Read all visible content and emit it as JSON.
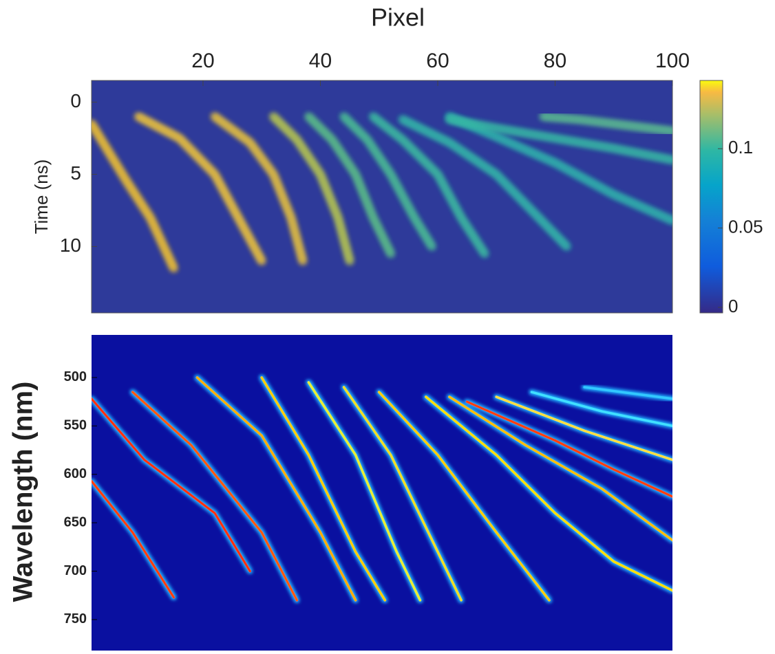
{
  "chart_data": [
    {
      "type": "heatmap",
      "title": "Pixel",
      "ylabel": "Time (ns)",
      "xlim": [
        1,
        100
      ],
      "xticks": [
        20,
        40,
        60,
        80,
        100
      ],
      "ylim": [
        -1.5,
        14.6
      ],
      "yticks": [
        0,
        5,
        10
      ],
      "colorbar": {
        "lim": [
          -0.0035,
          0.143
        ],
        "ticks": [
          0,
          0.05,
          0.1
        ]
      },
      "series": [
        {
          "color": "#f2c232",
          "x": [
            1,
            7,
            11,
            15
          ],
          "values": [
            1.5,
            5.5,
            8,
            11.5
          ]
        },
        {
          "color": "#f0c53a",
          "x": [
            9,
            16,
            22,
            26,
            30
          ],
          "values": [
            1,
            2.5,
            5,
            8,
            11
          ]
        },
        {
          "color": "#e8c23c",
          "x": [
            22,
            28,
            32,
            35,
            37
          ],
          "values": [
            1,
            2.8,
            5,
            8,
            11
          ]
        },
        {
          "color": "#b8c850",
          "x": [
            32,
            36,
            40,
            43,
            45
          ],
          "values": [
            1,
            2.6,
            5,
            8,
            11
          ]
        },
        {
          "color": "#5cc088",
          "x": [
            38,
            42,
            46,
            49,
            52
          ],
          "values": [
            1,
            2.6,
            5,
            8,
            10.5
          ]
        },
        {
          "color": "#4cbe94",
          "x": [
            44,
            48,
            52,
            56,
            59
          ],
          "values": [
            1,
            2.6,
            5,
            8,
            10
          ]
        },
        {
          "color": "#3cbca0",
          "x": [
            49,
            54,
            60,
            64,
            68
          ],
          "values": [
            1,
            2.6,
            5,
            8,
            10.5
          ]
        },
        {
          "color": "#34b8a8",
          "x": [
            54,
            62,
            70,
            76,
            82
          ],
          "values": [
            1.2,
            2.8,
            5,
            7.5,
            10
          ]
        },
        {
          "color": "#30b4ac",
          "x": [
            62,
            70,
            80,
            90,
            100
          ],
          "values": [
            1,
            2.4,
            4.2,
            6.4,
            8.2
          ]
        },
        {
          "color": "#38b8a4",
          "x": [
            62,
            70,
            80,
            90,
            100
          ],
          "values": [
            1.2,
            1.8,
            2.5,
            3.2,
            4
          ]
        },
        {
          "color": "#5cbc90",
          "x": [
            78,
            84,
            90,
            100
          ],
          "values": [
            1,
            1.2,
            1.5,
            2
          ]
        }
      ]
    },
    {
      "type": "heatmap",
      "ylabel": "Wavelength (nm)",
      "xlim": [
        1,
        100
      ],
      "ylim": [
        456,
        782
      ],
      "yticks": [
        500,
        550,
        600,
        650,
        700,
        750
      ],
      "series": [
        {
          "color": "#ff3010",
          "x": [
            1,
            10,
            22,
            28
          ],
          "values": [
            522,
            585,
            640,
            700
          ]
        },
        {
          "color": "#ff4010",
          "x": [
            1,
            8,
            15
          ],
          "values": [
            607,
            660,
            727
          ]
        },
        {
          "color": "#ff5a10",
          "x": [
            8,
            18,
            30,
            36
          ],
          "values": [
            515,
            570,
            660,
            730
          ]
        },
        {
          "color": "#ffb000",
          "x": [
            19,
            30,
            40,
            46
          ],
          "values": [
            500,
            560,
            660,
            730
          ]
        },
        {
          "color": "#ffd000",
          "x": [
            30,
            38,
            46,
            51
          ],
          "values": [
            500,
            580,
            680,
            730
          ]
        },
        {
          "color": "#e8f030",
          "x": [
            38,
            46,
            53,
            57
          ],
          "values": [
            505,
            580,
            680,
            730
          ]
        },
        {
          "color": "#f0e020",
          "x": [
            44,
            52,
            60,
            64
          ],
          "values": [
            510,
            580,
            680,
            730
          ]
        },
        {
          "color": "#ffd000",
          "x": [
            50,
            60,
            70,
            79
          ],
          "values": [
            515,
            580,
            660,
            730
          ]
        },
        {
          "color": "#ffe000",
          "x": [
            58,
            70,
            80,
            90,
            100
          ],
          "values": [
            520,
            580,
            640,
            690,
            720
          ]
        },
        {
          "color": "#ffc000",
          "x": [
            62,
            75,
            88,
            100
          ],
          "values": [
            520,
            570,
            615,
            668
          ]
        },
        {
          "color": "#ff4010",
          "x": [
            65,
            80,
            90,
            100
          ],
          "values": [
            525,
            565,
            595,
            623
          ]
        },
        {
          "color": "#ffe040",
          "x": [
            70,
            85,
            100
          ],
          "values": [
            520,
            555,
            585
          ]
        },
        {
          "color": "#40e0ff",
          "x": [
            76,
            88,
            100
          ],
          "values": [
            515,
            535,
            550
          ]
        },
        {
          "color": "#30c8ff",
          "x": [
            85,
            100
          ],
          "values": [
            510,
            522
          ]
        }
      ]
    }
  ]
}
